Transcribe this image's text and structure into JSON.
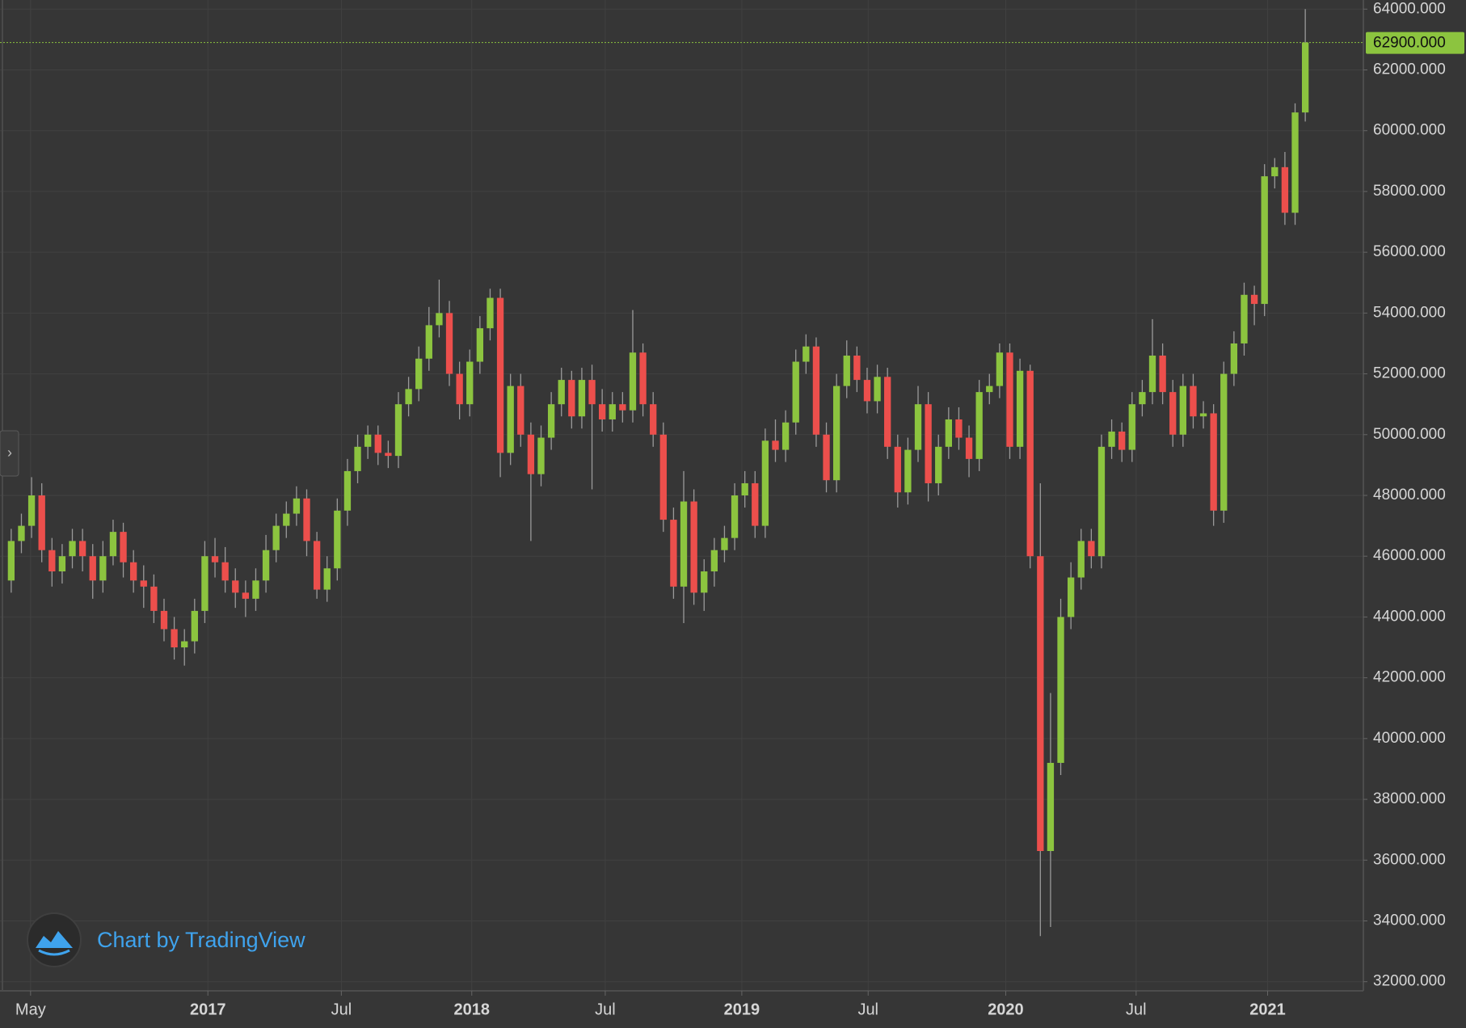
{
  "chart_data": {
    "type": "candlestick",
    "watermark": "Chart by TradingView",
    "sidebar_toggle": "›",
    "up_color": "#8cc43f",
    "down_color": "#ec4f4c",
    "wick_color": "#9a9a9a",
    "grid": true,
    "xlim": [
      -1.1,
      132.7
    ],
    "ylim": [
      31700,
      64300
    ],
    "yticks": [
      {
        "value": 32000,
        "label": "32000.000"
      },
      {
        "value": 34000,
        "label": "34000.000"
      },
      {
        "value": 36000,
        "label": "36000.000"
      },
      {
        "value": 38000,
        "label": "38000.000"
      },
      {
        "value": 40000,
        "label": "40000.000"
      },
      {
        "value": 42000,
        "label": "42000.000"
      },
      {
        "value": 44000,
        "label": "44000.000"
      },
      {
        "value": 46000,
        "label": "46000.000"
      },
      {
        "value": 48000,
        "label": "48000.000"
      },
      {
        "value": 50000,
        "label": "50000.000"
      },
      {
        "value": 52000,
        "label": "52000.000"
      },
      {
        "value": 54000,
        "label": "54000.000"
      },
      {
        "value": 56000,
        "label": "56000.000"
      },
      {
        "value": 58000,
        "label": "58000.000"
      },
      {
        "value": 60000,
        "label": "60000.000"
      },
      {
        "value": 62000,
        "label": "62000.000"
      },
      {
        "value": 64000,
        "label": "64000.000"
      }
    ],
    "xticks": [
      {
        "value": 1.9,
        "label": "May"
      },
      {
        "value": 19.3,
        "label": "2017"
      },
      {
        "value": 32.4,
        "label": "Jul"
      },
      {
        "value": 45.2,
        "label": "2018"
      },
      {
        "value": 58.3,
        "label": "Jul"
      },
      {
        "value": 71.7,
        "label": "2019"
      },
      {
        "value": 84.1,
        "label": "Jul"
      },
      {
        "value": 97.6,
        "label": "2020"
      },
      {
        "value": 110.4,
        "label": "Jul"
      },
      {
        "value": 123.3,
        "label": "2021"
      }
    ],
    "price_line": {
      "value": 62900,
      "label": "62900.000"
    },
    "open": [
      45200,
      46500,
      47000,
      48000,
      46200,
      45500,
      46000,
      46500,
      46000,
      45200,
      46000,
      46800,
      45800,
      45200,
      45000,
      44200,
      43600,
      43000,
      43200,
      44200,
      46000,
      45800,
      45200,
      44800,
      44600,
      45200,
      46200,
      47000,
      47400,
      47900,
      46500,
      44900,
      45600,
      47500,
      48800,
      49600,
      50000,
      49400,
      49300,
      51000,
      51500,
      52500,
      53600,
      54000,
      52000,
      51000,
      52400,
      53500,
      54500,
      49400,
      51600,
      50000,
      48700,
      49900,
      51000,
      51800,
      50600,
      51800,
      51000,
      50500,
      51000,
      50800,
      52700,
      51000,
      50000,
      47200,
      45000,
      47800,
      44800,
      45500,
      46200,
      46600,
      48000,
      48400,
      47000,
      49800,
      49500,
      50400,
      52400,
      52900,
      50000,
      48500,
      51600,
      52600,
      51800,
      51100,
      51900,
      49600,
      48100,
      49500,
      51000,
      48400,
      49600,
      50500,
      49900,
      49200,
      51400,
      51600,
      52700,
      49600,
      52100,
      46000,
      36300,
      39200,
      44000,
      45300,
      46500,
      46000,
      49600,
      50100,
      49500,
      51000,
      51400,
      52600,
      51400,
      50000,
      51600,
      50600,
      50700,
      47500,
      52000,
      53000,
      54600,
      54300,
      58500,
      58800,
      57300,
      60600
    ],
    "high": [
      46900,
      47400,
      48600,
      48400,
      46600,
      46400,
      46900,
      46900,
      46400,
      46500,
      47200,
      47100,
      46200,
      45700,
      45400,
      44600,
      44000,
      43600,
      44600,
      46500,
      46600,
      46300,
      45600,
      45200,
      45600,
      46700,
      47400,
      47800,
      48300,
      48200,
      46800,
      46000,
      47900,
      49200,
      50000,
      50300,
      50300,
      49800,
      51400,
      51900,
      52900,
      54200,
      55100,
      54400,
      52400,
      52800,
      53900,
      54800,
      54800,
      52000,
      52000,
      50400,
      50300,
      51400,
      52200,
      52100,
      52200,
      52300,
      51500,
      51400,
      51400,
      54100,
      53000,
      51400,
      50400,
      47600,
      48800,
      48200,
      45900,
      46600,
      47000,
      48400,
      48800,
      48800,
      50200,
      50500,
      50800,
      52800,
      53300,
      53200,
      50400,
      52000,
      53100,
      52900,
      52200,
      52300,
      52200,
      50000,
      49900,
      51600,
      51400,
      50000,
      50900,
      50900,
      50300,
      51800,
      52000,
      53000,
      53000,
      52500,
      52300,
      48400,
      41500,
      44600,
      45800,
      46900,
      46900,
      50000,
      50500,
      50400,
      51400,
      51800,
      53800,
      53000,
      51800,
      52000,
      52000,
      51100,
      51000,
      52400,
      53400,
      55000,
      54900,
      58900,
      59100,
      59300,
      60900,
      64000
    ],
    "low": [
      44800,
      46100,
      46600,
      45800,
      45000,
      45100,
      45600,
      45500,
      44600,
      44800,
      45700,
      45300,
      44800,
      44300,
      43800,
      43200,
      42600,
      42400,
      42800,
      43800,
      45300,
      44800,
      44300,
      44000,
      44200,
      44800,
      45800,
      46600,
      47000,
      46000,
      44600,
      44500,
      45200,
      47000,
      48400,
      49200,
      49000,
      48900,
      48900,
      50600,
      51100,
      52100,
      53200,
      51600,
      50500,
      50600,
      52000,
      53100,
      48600,
      49000,
      49600,
      46500,
      48300,
      49500,
      50600,
      50200,
      50200,
      48200,
      50100,
      50100,
      50400,
      50400,
      50600,
      49600,
      46800,
      44600,
      43800,
      44400,
      44200,
      45000,
      45800,
      46200,
      47600,
      46600,
      46600,
      49100,
      49100,
      50000,
      52000,
      49600,
      48100,
      48100,
      51200,
      51400,
      50700,
      50700,
      49200,
      47600,
      47700,
      49100,
      47800,
      48000,
      49200,
      49500,
      48600,
      48800,
      51000,
      51200,
      49200,
      49200,
      45600,
      33500,
      33800,
      38800,
      43600,
      44900,
      45600,
      45600,
      49200,
      49100,
      49100,
      50600,
      51000,
      51000,
      49600,
      49600,
      50200,
      50200,
      47000,
      47100,
      51600,
      52600,
      53600,
      53900,
      58100,
      56900,
      56900,
      60300
    ],
    "close": [
      46500,
      47000,
      48000,
      46200,
      45500,
      46000,
      46500,
      46000,
      45200,
      46000,
      46800,
      45800,
      45200,
      45000,
      44200,
      43600,
      43000,
      43200,
      44200,
      46000,
      45800,
      45200,
      44800,
      44600,
      45200,
      46200,
      47000,
      47400,
      47900,
      46500,
      44900,
      45600,
      47500,
      48800,
      49600,
      50000,
      49400,
      49300,
      51000,
      51500,
      52500,
      53600,
      54000,
      52000,
      51000,
      52400,
      53500,
      54500,
      49400,
      51600,
      50000,
      48700,
      49900,
      51000,
      51800,
      50600,
      51800,
      51000,
      50500,
      51000,
      50800,
      52700,
      51000,
      50000,
      47200,
      45000,
      47800,
      44800,
      45500,
      46200,
      46600,
      48000,
      48400,
      47000,
      49800,
      49500,
      50400,
      52400,
      52900,
      50000,
      48500,
      51600,
      52600,
      51800,
      51100,
      51900,
      49600,
      48100,
      49500,
      51000,
      48400,
      49600,
      50500,
      49900,
      49200,
      51400,
      51600,
      52700,
      49600,
      52100,
      46000,
      36300,
      39200,
      44000,
      45300,
      46500,
      46000,
      49600,
      50100,
      49500,
      51000,
      51400,
      52600,
      51400,
      50000,
      51600,
      50600,
      50700,
      47500,
      52000,
      53000,
      54600,
      54300,
      58500,
      58800,
      57300,
      60600,
      62900
    ]
  }
}
